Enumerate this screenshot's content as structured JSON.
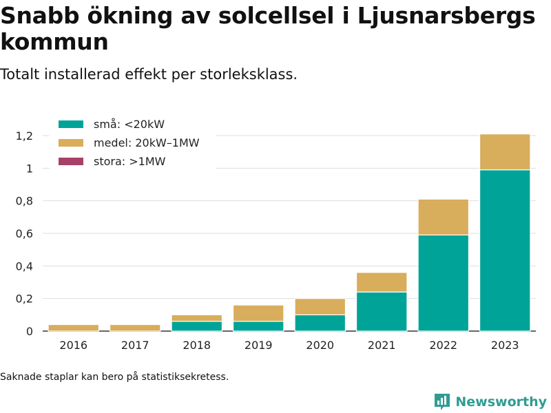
{
  "header": {
    "title": "Snabb ökning av solcellsel i Ljusnarsbergs kommun",
    "subtitle": "Totalt installerad effekt per storleksklass."
  },
  "footnote": "Saknade staplar kan bero på statistiksekretess.",
  "brand": {
    "name": "Newsworthy",
    "icon": "bar-chart-logo-icon",
    "color": "#2f9c92"
  },
  "chart_data": {
    "type": "bar",
    "stacked": true,
    "title": "Snabb ökning av solcellsel i Ljusnarsbergs kommun",
    "subtitle": "Totalt installerad effekt per storleksklass.",
    "xlabel": "",
    "ylabel": "",
    "categories": [
      "2016",
      "2017",
      "2018",
      "2019",
      "2020",
      "2021",
      "2022",
      "2023"
    ],
    "series": [
      {
        "name": "små: <20kW",
        "color": "#00a398",
        "values": [
          0,
          0,
          0.06,
          0.06,
          0.1,
          0.24,
          0.59,
          0.99
        ]
      },
      {
        "name": "medel: 20kW–1MW",
        "color": "#d8ad5b",
        "values": [
          0.04,
          0.04,
          0.04,
          0.1,
          0.1,
          0.12,
          0.22,
          0.22
        ]
      },
      {
        "name": "stora: >1MW",
        "color": "#a8416a",
        "values": [
          0,
          0,
          0,
          0,
          0,
          0,
          0,
          0
        ]
      }
    ],
    "ylim": [
      0,
      1.2
    ],
    "yticks": [
      0,
      0.2,
      0.4,
      0.6,
      0.8,
      1,
      1.2
    ],
    "ytick_labels": [
      "0",
      "0,2",
      "0,4",
      "0,6",
      "0,8",
      "1",
      "1,2"
    ],
    "grid": true,
    "legend_position": "top-left"
  }
}
